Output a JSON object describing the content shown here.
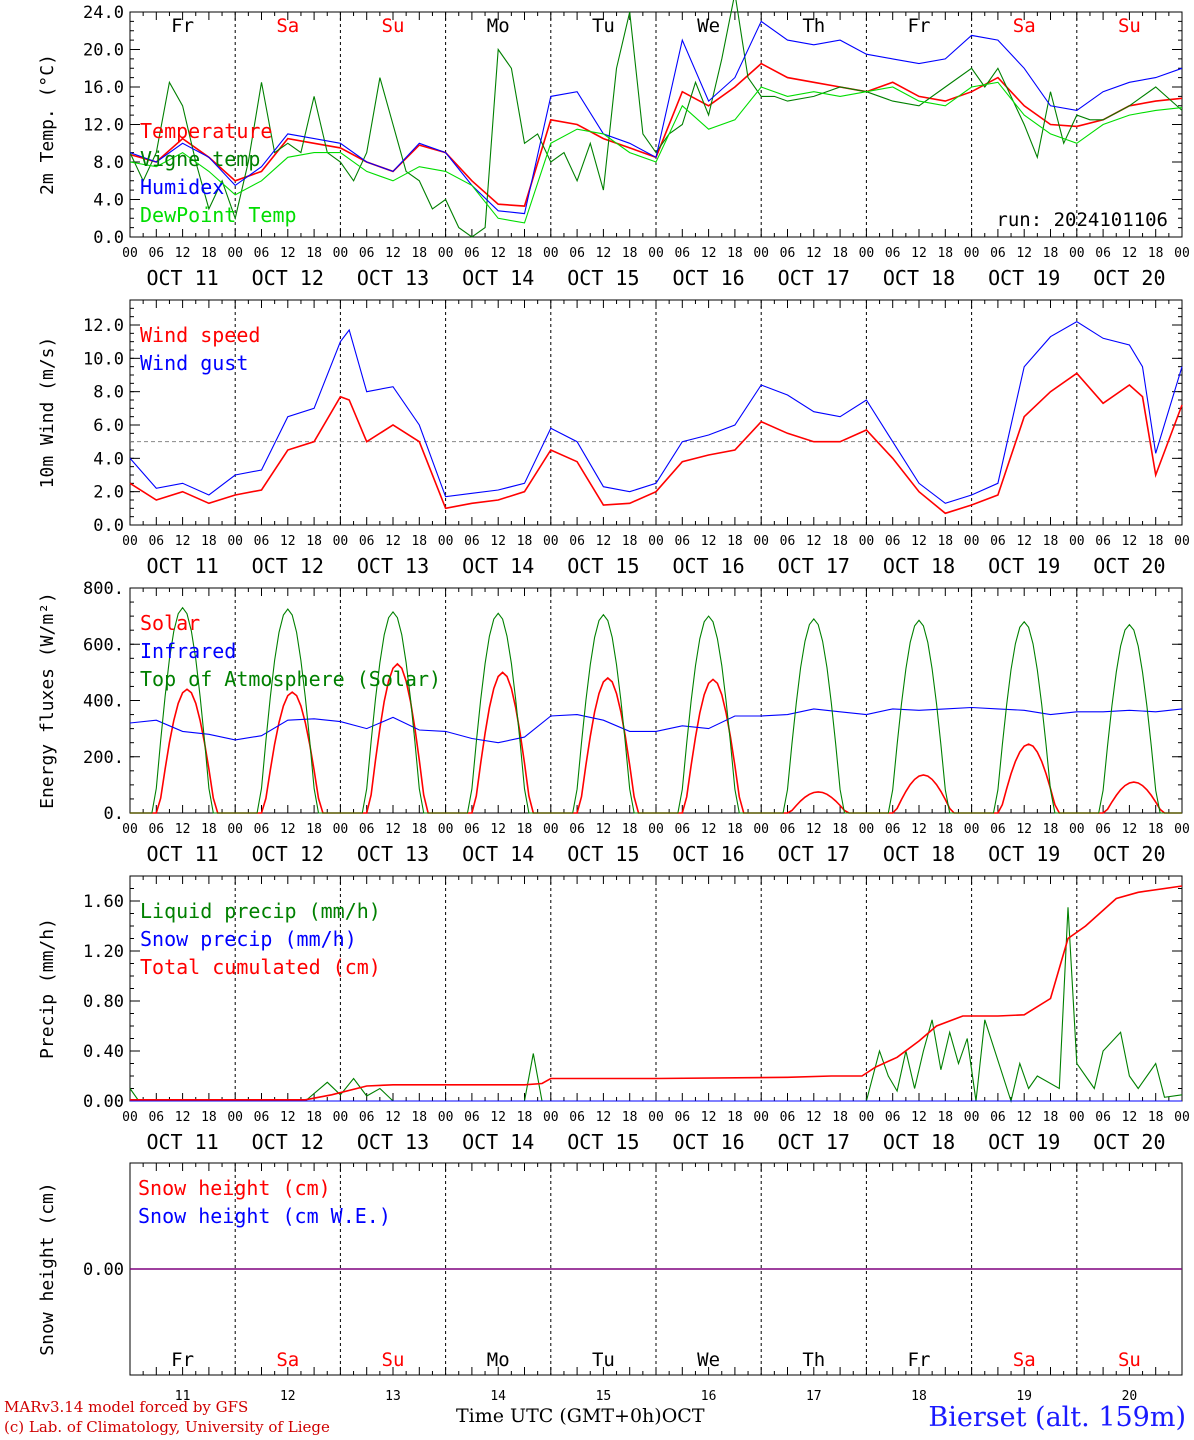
{
  "run_label": "run: 2024101106",
  "footer": {
    "credit_line1": "MARv3.14 model forced by GFS",
    "credit_line2": "(c) Lab. of Climatology, University of Liege",
    "time_label": "Time UTC (GMT+0h)",
    "month_label": "OCT",
    "station": "Bierset (alt. 159m)"
  },
  "colors": {
    "red": "#ff0000",
    "blue": "#0000ff",
    "green": "#008000",
    "lightgreen": "#00dd00",
    "purple": "#7f007f",
    "weekend": "#ff0000",
    "weekday": "#000000"
  },
  "days": {
    "names": [
      "Fr",
      "Sa",
      "Su",
      "Mo",
      "Tu",
      "We",
      "Th",
      "Fr",
      "Sa",
      "Su"
    ],
    "weekend": [
      false,
      true,
      true,
      false,
      false,
      false,
      false,
      false,
      true,
      true
    ],
    "date_labels": [
      "OCT 11",
      "OCT 12",
      "OCT 13",
      "OCT 14",
      "OCT 15",
      "OCT 16",
      "OCT 17",
      "OCT 18",
      "OCT 19",
      "OCT 20"
    ],
    "numbers": [
      "11",
      "12",
      "13",
      "14",
      "15",
      "16",
      "17",
      "18",
      "19",
      "20"
    ],
    "hour_ticks": [
      "00",
      "06",
      "12",
      "18"
    ],
    "final_tick": "00"
  },
  "chart_data": [
    {
      "type": "line",
      "ylabel": "2m Temp. (°C)",
      "ylim": [
        0,
        24
      ],
      "yticks": [
        "0.0",
        "4.0",
        "8.0",
        "12.0",
        "16.0",
        "20.0",
        "24.0"
      ],
      "x_unit": "hours from 2024-10-11 00 UTC",
      "series": [
        {
          "name": "Temperature",
          "color": "red",
          "x": [
            0,
            6,
            12,
            18,
            24,
            30,
            36,
            42,
            48,
            54,
            60,
            66,
            72,
            78,
            84,
            90,
            96,
            102,
            108,
            114,
            120,
            126,
            132,
            138,
            144,
            150,
            156,
            162,
            168,
            174,
            180,
            186,
            192,
            198,
            204,
            210,
            216,
            222,
            228,
            234,
            240
          ],
          "y": [
            8.8,
            8,
            10.5,
            8.5,
            6,
            7,
            10.5,
            10,
            9.5,
            8,
            7,
            9.8,
            9,
            6,
            3.5,
            3.3,
            12.5,
            12,
            10.5,
            9.5,
            8.5,
            15.5,
            14,
            16,
            18.5,
            17,
            16.5,
            16,
            15.5,
            16.5,
            15,
            14.5,
            15.5,
            17,
            14,
            12,
            11.8,
            12.5,
            14,
            14.5,
            14.8
          ]
        },
        {
          "name": "Vigne temp",
          "color": "green",
          "x": [
            0,
            3,
            6,
            9,
            12,
            15,
            18,
            21,
            24,
            27,
            30,
            33,
            36,
            39,
            42,
            45,
            48,
            51,
            54,
            57,
            60,
            63,
            66,
            69,
            72,
            75,
            78,
            81,
            84,
            87,
            90,
            93,
            96,
            99,
            102,
            105,
            108,
            111,
            114,
            117,
            120,
            123,
            126,
            129,
            132,
            135,
            138,
            141,
            144,
            147,
            150,
            156,
            162,
            168,
            174,
            180,
            186,
            192,
            195,
            198,
            201,
            204,
            207,
            210,
            213,
            216,
            219,
            222,
            228,
            234,
            240
          ],
          "y": [
            9,
            6,
            9,
            16.5,
            14,
            8,
            3,
            6,
            2,
            8,
            16.5,
            9,
            10,
            9,
            15,
            9,
            8,
            6,
            9,
            17,
            12,
            7,
            6,
            3,
            4,
            1,
            0,
            1,
            20,
            18,
            10,
            11,
            8,
            9,
            6,
            10,
            5,
            18,
            24,
            11,
            9,
            11,
            12,
            16.5,
            13,
            19,
            26,
            17,
            15,
            15,
            14.5,
            15,
            16,
            15.5,
            14.5,
            14,
            16,
            18,
            16,
            18,
            15,
            12,
            8.5,
            15.5,
            10,
            13,
            12.5,
            12.5,
            14,
            16,
            13.5
          ]
        },
        {
          "name": "Humidex",
          "color": "blue",
          "x": [
            0,
            6,
            12,
            18,
            24,
            30,
            36,
            42,
            48,
            54,
            60,
            66,
            72,
            78,
            84,
            90,
            96,
            102,
            108,
            114,
            120,
            126,
            132,
            138,
            144,
            150,
            156,
            162,
            168,
            174,
            180,
            186,
            192,
            198,
            204,
            210,
            216,
            222,
            228,
            234,
            240
          ],
          "y": [
            9,
            8,
            10,
            8.5,
            5.5,
            7.5,
            11,
            10.5,
            10,
            8,
            7,
            10,
            9,
            5.5,
            2.8,
            2.5,
            15,
            15.5,
            11,
            10,
            8.5,
            21,
            14.5,
            17,
            23,
            21,
            20.5,
            21,
            19.5,
            19,
            18.5,
            19,
            21.5,
            21,
            18,
            14,
            13.5,
            15.5,
            16.5,
            17,
            18
          ]
        },
        {
          "name": "DewPoint Temp",
          "color": "lightgreen",
          "x": [
            0,
            6,
            12,
            18,
            24,
            30,
            36,
            42,
            48,
            54,
            60,
            66,
            72,
            78,
            84,
            90,
            96,
            102,
            108,
            114,
            120,
            126,
            132,
            138,
            144,
            150,
            156,
            162,
            168,
            174,
            180,
            186,
            192,
            198,
            204,
            210,
            216,
            222,
            228,
            234,
            240
          ],
          "y": [
            8,
            7.5,
            9,
            7,
            4.5,
            6,
            8.5,
            9,
            9,
            7,
            6,
            7.5,
            7,
            5.5,
            2,
            1.5,
            10,
            11.5,
            11,
            9,
            8,
            14,
            11.5,
            12.5,
            16,
            15,
            15.5,
            15,
            15.5,
            16,
            14.5,
            14,
            16,
            16.5,
            13,
            11,
            10,
            12,
            13,
            13.5,
            13.8
          ]
        }
      ]
    },
    {
      "type": "line",
      "ylabel": "10m Wind (m/s)",
      "ylim": [
        0,
        13.5
      ],
      "yticks": [
        "0.0",
        "2.0",
        "4.0",
        "6.0",
        "8.0",
        "10.0",
        "12.0"
      ],
      "hline": 5,
      "series": [
        {
          "name": "Wind speed",
          "color": "red",
          "x": [
            0,
            6,
            12,
            18,
            24,
            30,
            36,
            42,
            48,
            50,
            54,
            60,
            66,
            72,
            78,
            84,
            90,
            96,
            102,
            108,
            114,
            120,
            126,
            132,
            138,
            144,
            150,
            156,
            162,
            168,
            174,
            180,
            186,
            192,
            198,
            204,
            210,
            216,
            222,
            228,
            231,
            234,
            240
          ],
          "y": [
            2.5,
            1.5,
            2,
            1.3,
            1.8,
            2.1,
            4.5,
            5,
            7.7,
            7.5,
            5,
            6,
            5,
            1,
            1.3,
            1.5,
            2,
            4.5,
            3.8,
            1.2,
            1.3,
            2,
            3.8,
            4.2,
            4.5,
            6.2,
            5.5,
            5,
            5,
            5.7,
            4,
            2,
            0.7,
            1.2,
            1.8,
            6.5,
            8,
            9.1,
            7.3,
            8.4,
            7.7,
            3,
            7.2
          ]
        },
        {
          "name": "Wind gust",
          "color": "blue",
          "x": [
            0,
            6,
            12,
            18,
            24,
            30,
            36,
            42,
            48,
            50,
            54,
            60,
            66,
            72,
            78,
            84,
            90,
            96,
            102,
            108,
            114,
            120,
            126,
            132,
            138,
            144,
            150,
            156,
            162,
            168,
            174,
            180,
            186,
            192,
            198,
            204,
            210,
            216,
            222,
            228,
            231,
            234,
            240
          ],
          "y": [
            4,
            2.2,
            2.5,
            1.8,
            3,
            3.3,
            6.5,
            7,
            11,
            11.7,
            8,
            8.3,
            6,
            1.7,
            1.9,
            2.1,
            2.5,
            5.8,
            5,
            2.3,
            2,
            2.5,
            5,
            5.4,
            6,
            8.4,
            7.8,
            6.8,
            6.5,
            7.5,
            5,
            2.5,
            1.3,
            1.8,
            2.5,
            9.5,
            11.3,
            12.2,
            11.2,
            10.8,
            9.5,
            4.3,
            9.5
          ]
        }
      ]
    },
    {
      "type": "line",
      "ylabel": "Energy fluxes (W/m²)",
      "ylim": [
        0,
        800
      ],
      "yticks": [
        "0.",
        "200.",
        "400.",
        "600.",
        "800."
      ],
      "series": [
        {
          "name": "Solar",
          "color": "red",
          "peaks": [
            440,
            430,
            530,
            500,
            480,
            475,
            75,
            135,
            245,
            110
          ],
          "peak_hour": 13
        },
        {
          "name": "Infrared",
          "color": "blue",
          "x": [
            0,
            6,
            12,
            18,
            24,
            30,
            36,
            42,
            48,
            54,
            60,
            66,
            72,
            78,
            84,
            90,
            96,
            102,
            108,
            114,
            120,
            126,
            132,
            138,
            144,
            150,
            156,
            162,
            168,
            174,
            180,
            186,
            192,
            198,
            204,
            210,
            216,
            222,
            228,
            234,
            240
          ],
          "y": [
            320,
            330,
            290,
            280,
            260,
            275,
            330,
            335,
            325,
            300,
            340,
            295,
            290,
            265,
            250,
            270,
            345,
            350,
            330,
            290,
            290,
            310,
            300,
            345,
            345,
            350,
            370,
            360,
            350,
            370,
            365,
            370,
            375,
            370,
            365,
            350,
            360,
            360,
            365,
            360,
            370
          ]
        },
        {
          "name": "Top of Atmosphere (Solar)",
          "color": "green",
          "peaks": [
            730,
            725,
            715,
            710,
            705,
            700,
            690,
            685,
            680,
            670
          ],
          "peak_hour": 12
        }
      ]
    },
    {
      "type": "line",
      "ylabel": "Precip (mm/h)",
      "ylim": [
        0,
        1.8
      ],
      "yticks": [
        "0.00",
        "0.40",
        "0.80",
        "1.20",
        "1.60"
      ],
      "series": [
        {
          "name": "Liquid precip (mm/h)",
          "color": "green",
          "x": [
            0,
            2,
            4,
            30,
            40,
            45,
            48,
            51,
            54,
            57,
            60,
            72,
            90,
            92,
            94,
            98,
            120,
            168,
            171,
            173,
            175,
            177,
            179,
            181,
            183,
            185,
            187,
            189,
            191,
            193,
            195,
            201,
            203,
            205,
            207,
            212,
            214,
            216,
            220,
            222,
            226,
            228,
            230,
            234,
            236,
            240
          ],
          "y": [
            0.1,
            0,
            0,
            0,
            0,
            0.15,
            0.05,
            0.18,
            0.04,
            0.1,
            0,
            0,
            0,
            0.38,
            0,
            0,
            0,
            0,
            0.4,
            0.2,
            0.08,
            0.4,
            0.1,
            0.4,
            0.65,
            0.25,
            0.55,
            0.3,
            0.5,
            0,
            0.65,
            0,
            0.3,
            0.1,
            0.2,
            0.1,
            1.55,
            0.3,
            0.1,
            0.4,
            0.55,
            0.2,
            0.1,
            0.3,
            0.03,
            0.05
          ]
        },
        {
          "name": "Snow precip (mm/h)",
          "color": "blue",
          "x": [
            0,
            240
          ],
          "y": [
            0,
            0
          ]
        },
        {
          "name": "Total cumulated (cm)",
          "color": "red",
          "x": [
            0,
            40,
            46,
            54,
            60,
            90,
            94,
            96,
            120,
            150,
            160,
            167,
            170,
            175,
            180,
            184,
            190,
            198,
            204,
            210,
            214,
            218,
            225,
            230,
            240
          ],
          "y": [
            0.01,
            0.01,
            0.05,
            0.12,
            0.13,
            0.13,
            0.14,
            0.18,
            0.18,
            0.19,
            0.2,
            0.2,
            0.27,
            0.35,
            0.48,
            0.6,
            0.68,
            0.68,
            0.69,
            0.82,
            1.3,
            1.4,
            1.62,
            1.67,
            1.72
          ]
        }
      ]
    },
    {
      "type": "line",
      "ylabel": "Snow height (cm)",
      "ylim": [
        -1,
        1
      ],
      "yticks": [
        "0.00"
      ],
      "series": [
        {
          "name": "Snow height (cm)",
          "color": "red",
          "x": [
            0,
            240
          ],
          "y": [
            0,
            0
          ]
        },
        {
          "name": "Snow height (cm W.E.)",
          "color": "blue",
          "x": [
            0,
            240
          ],
          "y": [
            0,
            0
          ]
        }
      ]
    }
  ]
}
